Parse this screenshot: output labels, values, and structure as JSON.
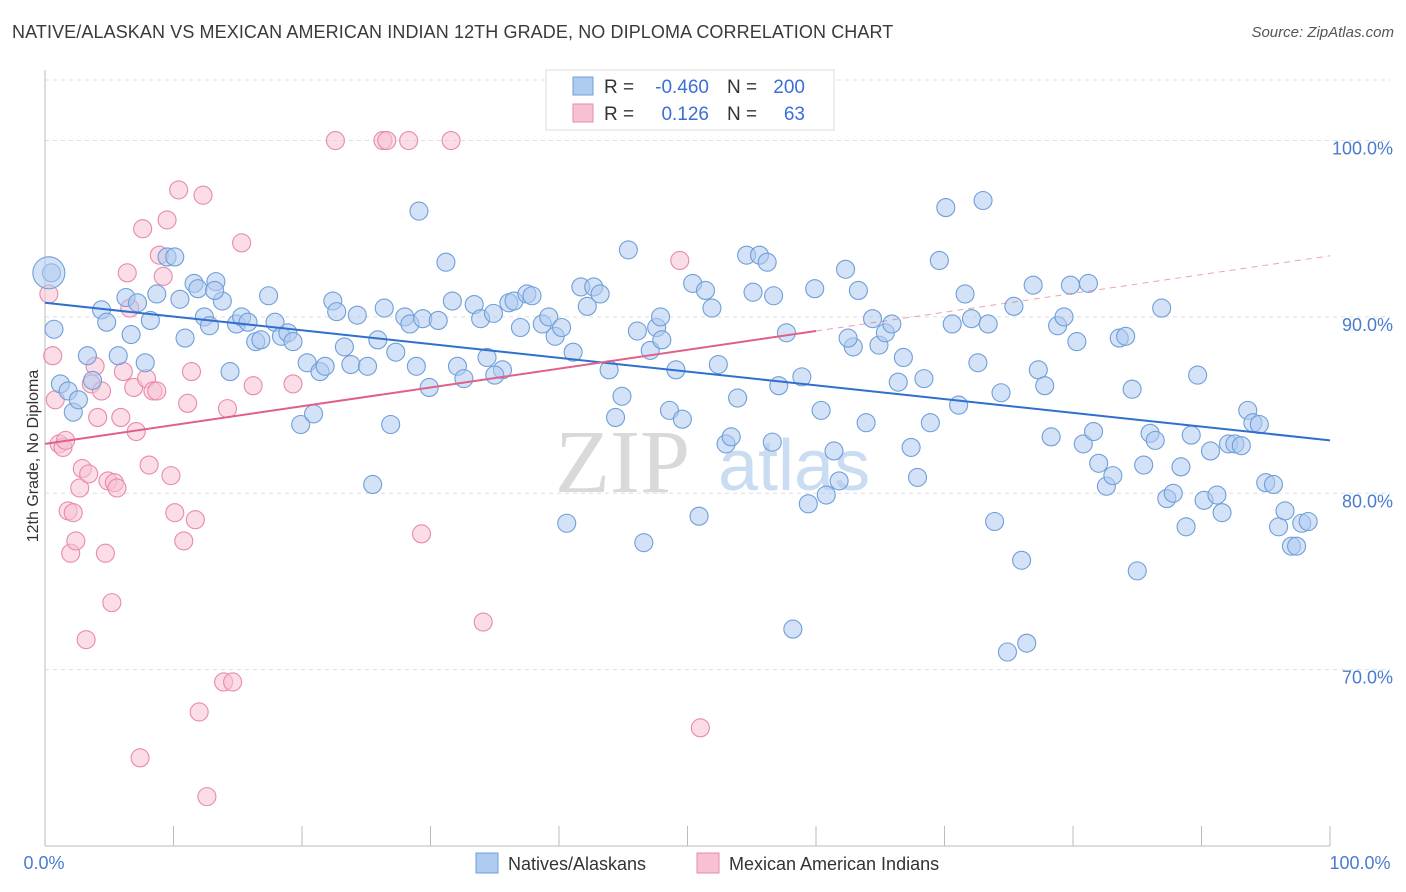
{
  "title": "NATIVE/ALASKAN VS MEXICAN AMERICAN INDIAN 12TH GRADE, NO DIPLOMA CORRELATION CHART",
  "source": "Source: ZipAtlas.com",
  "watermark": {
    "zip": "ZIP",
    "atlas": "atlas"
  },
  "colors": {
    "blue_fill": "#aecbf0",
    "blue_stroke": "#6f9fd8",
    "blue_line": "#2f6fcf",
    "pink_fill": "#f7c1d3",
    "pink_stroke": "#e98aa8",
    "pink_line": "#e0608c",
    "axis_text": "#4a7bd0",
    "grid": "#dddddd"
  },
  "legend": {
    "rows": [
      {
        "r_label": "R =",
        "r_value": "-0.460",
        "n_label": "N =",
        "n_value": "200"
      },
      {
        "r_label": "R =",
        "r_value": "0.126",
        "n_label": "N =",
        "n_value": "63"
      }
    ]
  },
  "bottom_legend": {
    "series1": "Natives/Alaskans",
    "series2": "Mexican American Indians"
  },
  "chart_data": {
    "type": "scatter",
    "title": "NATIVE/ALASKAN VS MEXICAN AMERICAN INDIAN 12TH GRADE, NO DIPLOMA CORRELATION CHART",
    "xlabel": "",
    "ylabel": "12th Grade, No Diploma",
    "xlim": [
      0,
      100
    ],
    "ylim": [
      60.0,
      104.0
    ],
    "x_tick_labels": [
      "0.0%",
      "100.0%"
    ],
    "y_ticks": [
      70,
      80,
      90,
      100
    ],
    "y_tick_labels": [
      "70.0%",
      "80.0%",
      "90.0%",
      "100.0%"
    ],
    "series": [
      {
        "name": "Natives/Alaskans",
        "R": -0.46,
        "N": 200,
        "trend": {
          "x": [
            0,
            100
          ],
          "y": [
            90.8,
            83.0
          ]
        },
        "points": [
          [
            0.5,
            92.5
          ],
          [
            0.7,
            89.3
          ],
          [
            1.2,
            86.2
          ],
          [
            1.8,
            85.8
          ],
          [
            2.2,
            84.6
          ],
          [
            2.6,
            85.3
          ],
          [
            3.3,
            87.8
          ],
          [
            3.7,
            86.4
          ],
          [
            4.4,
            90.4
          ],
          [
            4.8,
            89.7
          ],
          [
            5.7,
            87.8
          ],
          [
            6.3,
            91.1
          ],
          [
            6.7,
            89.0
          ],
          [
            7.2,
            90.8
          ],
          [
            7.8,
            87.4
          ],
          [
            8.2,
            89.8
          ],
          [
            8.7,
            91.3
          ],
          [
            9.5,
            93.4
          ],
          [
            10.1,
            93.4
          ],
          [
            10.5,
            91.0
          ],
          [
            10.9,
            88.8
          ],
          [
            11.6,
            91.9
          ],
          [
            11.9,
            91.6
          ],
          [
            12.4,
            90.0
          ],
          [
            12.8,
            89.5
          ],
          [
            13.3,
            92.0
          ],
          [
            13.8,
            90.9
          ],
          [
            14.4,
            86.9
          ],
          [
            14.9,
            89.6
          ],
          [
            15.3,
            90.0
          ],
          [
            15.8,
            89.7
          ],
          [
            16.4,
            88.6
          ],
          [
            16.8,
            88.7
          ],
          [
            17.4,
            91.2
          ],
          [
            17.9,
            89.7
          ],
          [
            18.4,
            88.9
          ],
          [
            18.9,
            89.1
          ],
          [
            19.3,
            88.6
          ],
          [
            19.9,
            83.9
          ],
          [
            20.4,
            87.4
          ],
          [
            20.9,
            84.5
          ],
          [
            21.4,
            86.9
          ],
          [
            21.8,
            87.2
          ],
          [
            22.4,
            90.9
          ],
          [
            22.7,
            90.3
          ],
          [
            23.3,
            88.3
          ],
          [
            23.8,
            87.3
          ],
          [
            24.3,
            90.1
          ],
          [
            25.1,
            87.2
          ],
          [
            25.5,
            80.5
          ],
          [
            25.9,
            88.7
          ],
          [
            26.4,
            90.5
          ],
          [
            26.9,
            83.9
          ],
          [
            27.3,
            88.0
          ],
          [
            28.0,
            90.0
          ],
          [
            28.4,
            89.6
          ],
          [
            28.9,
            87.2
          ],
          [
            29.4,
            89.9
          ],
          [
            29.9,
            86.0
          ],
          [
            30.6,
            89.8
          ],
          [
            31.2,
            93.1
          ],
          [
            31.7,
            90.9
          ],
          [
            32.1,
            87.2
          ],
          [
            32.6,
            86.5
          ],
          [
            33.4,
            90.7
          ],
          [
            33.9,
            89.9
          ],
          [
            34.4,
            87.7
          ],
          [
            34.9,
            90.2
          ],
          [
            35.6,
            87.0
          ],
          [
            36.1,
            90.8
          ],
          [
            36.5,
            90.9
          ],
          [
            37.0,
            89.4
          ],
          [
            37.5,
            91.3
          ],
          [
            37.9,
            91.2
          ],
          [
            38.7,
            89.6
          ],
          [
            39.2,
            90.0
          ],
          [
            39.7,
            88.9
          ],
          [
            40.2,
            89.4
          ],
          [
            40.6,
            78.3
          ],
          [
            41.1,
            88.0
          ],
          [
            41.7,
            91.7
          ],
          [
            42.2,
            90.6
          ],
          [
            42.7,
            91.7
          ],
          [
            43.2,
            91.3
          ],
          [
            43.9,
            87.0
          ],
          [
            44.4,
            84.3
          ],
          [
            44.9,
            85.5
          ],
          [
            45.4,
            93.8
          ],
          [
            46.1,
            89.2
          ],
          [
            46.6,
            77.2
          ],
          [
            47.1,
            88.1
          ],
          [
            47.6,
            89.4
          ],
          [
            48.0,
            88.7
          ],
          [
            48.6,
            84.7
          ],
          [
            49.1,
            87.0
          ],
          [
            49.6,
            84.2
          ],
          [
            50.4,
            91.9
          ],
          [
            50.9,
            78.7
          ],
          [
            51.4,
            91.5
          ],
          [
            51.9,
            90.5
          ],
          [
            52.4,
            87.3
          ],
          [
            53.0,
            82.8
          ],
          [
            53.4,
            83.2
          ],
          [
            53.9,
            85.4
          ],
          [
            54.6,
            93.5
          ],
          [
            55.1,
            91.4
          ],
          [
            55.6,
            93.5
          ],
          [
            56.2,
            93.1
          ],
          [
            56.6,
            82.9
          ],
          [
            57.1,
            86.1
          ],
          [
            57.7,
            89.1
          ],
          [
            58.2,
            72.3
          ],
          [
            58.9,
            86.6
          ],
          [
            59.4,
            79.4
          ],
          [
            59.9,
            91.6
          ],
          [
            60.4,
            84.7
          ],
          [
            60.8,
            79.9
          ],
          [
            61.4,
            82.4
          ],
          [
            61.8,
            80.7
          ],
          [
            62.3,
            92.7
          ],
          [
            62.9,
            88.3
          ],
          [
            63.3,
            91.5
          ],
          [
            63.9,
            84.0
          ],
          [
            64.4,
            89.9
          ],
          [
            64.9,
            88.4
          ],
          [
            65.4,
            89.1
          ],
          [
            65.9,
            89.6
          ],
          [
            66.4,
            86.3
          ],
          [
            66.8,
            87.7
          ],
          [
            67.4,
            82.6
          ],
          [
            67.9,
            80.9
          ],
          [
            68.4,
            86.5
          ],
          [
            68.9,
            84.0
          ],
          [
            69.6,
            93.2
          ],
          [
            70.1,
            96.2
          ],
          [
            70.6,
            89.6
          ],
          [
            71.1,
            85.0
          ],
          [
            71.6,
            91.3
          ],
          [
            72.1,
            89.9
          ],
          [
            72.6,
            87.4
          ],
          [
            73.0,
            96.6
          ],
          [
            73.4,
            89.6
          ],
          [
            73.9,
            78.4
          ],
          [
            74.4,
            85.7
          ],
          [
            74.9,
            71.0
          ],
          [
            75.4,
            90.6
          ],
          [
            76.0,
            76.2
          ],
          [
            76.4,
            71.5
          ],
          [
            76.9,
            91.8
          ],
          [
            77.3,
            87.0
          ],
          [
            77.8,
            86.1
          ],
          [
            78.3,
            83.2
          ],
          [
            78.8,
            89.5
          ],
          [
            79.3,
            90.0
          ],
          [
            79.8,
            91.8
          ],
          [
            80.3,
            88.6
          ],
          [
            80.8,
            82.8
          ],
          [
            81.2,
            91.9
          ],
          [
            81.6,
            83.5
          ],
          [
            82.0,
            81.7
          ],
          [
            82.6,
            80.4
          ],
          [
            83.1,
            81.0
          ],
          [
            83.6,
            88.8
          ],
          [
            84.1,
            88.9
          ],
          [
            84.6,
            85.9
          ],
          [
            85.0,
            75.6
          ],
          [
            85.5,
            81.6
          ],
          [
            86.0,
            83.4
          ],
          [
            86.4,
            83.0
          ],
          [
            86.9,
            90.5
          ],
          [
            87.3,
            79.7
          ],
          [
            87.8,
            80.0
          ],
          [
            88.4,
            81.5
          ],
          [
            88.8,
            78.1
          ],
          [
            89.2,
            83.3
          ],
          [
            89.7,
            86.7
          ],
          [
            90.2,
            79.6
          ],
          [
            90.7,
            82.4
          ],
          [
            91.2,
            79.9
          ],
          [
            91.6,
            78.9
          ],
          [
            92.1,
            82.8
          ],
          [
            92.6,
            82.8
          ],
          [
            93.1,
            82.7
          ],
          [
            93.6,
            84.7
          ],
          [
            94.0,
            84.0
          ],
          [
            94.5,
            83.9
          ],
          [
            95.0,
            80.6
          ],
          [
            95.6,
            80.5
          ],
          [
            96.0,
            78.1
          ],
          [
            96.5,
            79.0
          ],
          [
            97.0,
            77.0
          ],
          [
            97.4,
            77.0
          ],
          [
            97.8,
            78.3
          ],
          [
            13.2,
            91.5
          ],
          [
            29.1,
            96.0
          ],
          [
            56.7,
            91.2
          ],
          [
            35.0,
            86.7
          ],
          [
            47.9,
            90.0
          ],
          [
            62.5,
            88.8
          ],
          [
            98.3,
            78.4
          ]
        ]
      },
      {
        "name": "Mexican American Indians",
        "R": 0.126,
        "N": 63,
        "trend": {
          "x": [
            0,
            60
          ],
          "y": [
            82.8,
            89.2
          ]
        },
        "points": [
          [
            0.3,
            91.3
          ],
          [
            0.6,
            87.8
          ],
          [
            0.8,
            85.3
          ],
          [
            1.1,
            82.8
          ],
          [
            1.4,
            82.6
          ],
          [
            1.6,
            83.0
          ],
          [
            1.8,
            79.0
          ],
          [
            2.0,
            76.6
          ],
          [
            2.2,
            78.9
          ],
          [
            2.4,
            77.3
          ],
          [
            2.7,
            80.3
          ],
          [
            2.9,
            81.4
          ],
          [
            3.2,
            71.7
          ],
          [
            3.4,
            81.1
          ],
          [
            3.6,
            86.2
          ],
          [
            3.9,
            87.2
          ],
          [
            4.1,
            84.3
          ],
          [
            4.4,
            85.8
          ],
          [
            4.7,
            76.6
          ],
          [
            4.9,
            80.7
          ],
          [
            5.2,
            73.8
          ],
          [
            5.4,
            80.6
          ],
          [
            5.6,
            80.3
          ],
          [
            5.9,
            84.3
          ],
          [
            6.1,
            86.9
          ],
          [
            6.4,
            92.5
          ],
          [
            6.6,
            90.5
          ],
          [
            6.9,
            86.0
          ],
          [
            7.1,
            83.5
          ],
          [
            7.4,
            65.0
          ],
          [
            7.6,
            95.0
          ],
          [
            7.9,
            86.5
          ],
          [
            8.1,
            81.6
          ],
          [
            8.4,
            85.8
          ],
          [
            8.7,
            85.8
          ],
          [
            8.9,
            93.5
          ],
          [
            9.2,
            92.3
          ],
          [
            9.5,
            95.5
          ],
          [
            9.8,
            81.0
          ],
          [
            10.1,
            78.9
          ],
          [
            10.4,
            97.2
          ],
          [
            10.8,
            77.3
          ],
          [
            11.1,
            85.1
          ],
          [
            11.4,
            86.9
          ],
          [
            11.7,
            78.5
          ],
          [
            12.0,
            67.6
          ],
          [
            12.3,
            96.9
          ],
          [
            12.6,
            62.8
          ],
          [
            13.9,
            69.3
          ],
          [
            14.2,
            84.8
          ],
          [
            14.6,
            69.3
          ],
          [
            15.3,
            94.2
          ],
          [
            16.2,
            86.1
          ],
          [
            19.3,
            86.2
          ],
          [
            22.6,
            100.0
          ],
          [
            26.3,
            100.0
          ],
          [
            26.6,
            100.0
          ],
          [
            28.3,
            100.0
          ],
          [
            29.3,
            77.7
          ],
          [
            31.6,
            100.0
          ],
          [
            34.1,
            72.7
          ],
          [
            49.4,
            93.2
          ],
          [
            51.0,
            66.7
          ]
        ]
      }
    ]
  }
}
